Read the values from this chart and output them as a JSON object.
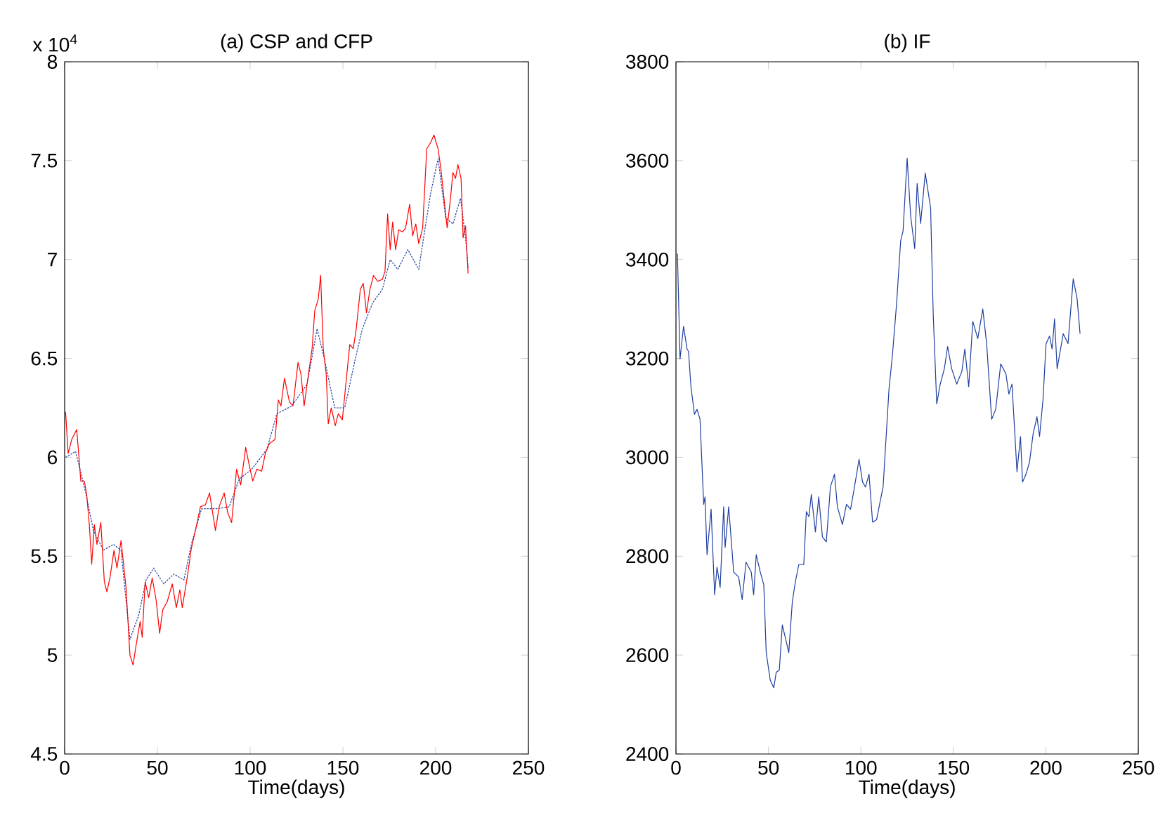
{
  "chart_data": [
    {
      "type": "line",
      "title": "(a) CSP and CFP",
      "xlabel": "Time(days)",
      "annotations": [
        "x 10$^{4}$"
      ],
      "xlim": [
        0,
        250
      ],
      "xticks": [
        0,
        50,
        100,
        150,
        200,
        250
      ],
      "ylim": [
        4.5,
        8
      ],
      "yticks": [
        4.5,
        5,
        5.5,
        6,
        6.5,
        7,
        7.5,
        8
      ],
      "grid": false,
      "series": [
        {
          "color": "#1f3fa0",
          "line_style": "dotted",
          "x": [
            0.5,
            5.9,
            11.4,
            15.5,
            20.9,
            26.3,
            30.4,
            35.2,
            39.9,
            43.9,
            48,
            53.4,
            58.8,
            64.3,
            68.3,
            73.8,
            81.9,
            88.7,
            94.1,
            100.9,
            109,
            114.4,
            122.5,
            130.7,
            136.1,
            140.2,
            145.6,
            151,
            156.5,
            160.5,
            166,
            171.3,
            175.5,
            179.6,
            185,
            190.9,
            193,
            197.2,
            201.3,
            205.4,
            209.3,
            213.4,
            216.1,
            217.5
          ],
          "values": [
            6.0,
            6.03,
            5.82,
            5.63,
            5.53,
            5.56,
            5.53,
            5.08,
            5.2,
            5.38,
            5.44,
            5.36,
            5.41,
            5.38,
            5.56,
            5.74,
            5.74,
            5.75,
            5.89,
            5.94,
            6.04,
            6.22,
            6.26,
            6.37,
            6.65,
            6.49,
            6.25,
            6.25,
            6.49,
            6.65,
            6.78,
            6.85,
            7.0,
            6.95,
            7.05,
            6.95,
            7.08,
            7.33,
            7.51,
            7.21,
            7.18,
            7.31,
            7.11,
            6.96
          ]
        },
        {
          "color": "#ff0000",
          "line_style": "solid",
          "x": [
            0.5,
            1.9,
            3.8,
            6.5,
            7.3,
            8.7,
            10.6,
            11.9,
            13.3,
            14.6,
            16,
            17.4,
            19.5,
            21.4,
            22.8,
            24.4,
            26.6,
            28.2,
            30.4,
            33.1,
            35.2,
            36.9,
            38.5,
            40.7,
            41.8,
            43.4,
            45.3,
            47.2,
            49.3,
            51.2,
            52.9,
            55.3,
            58,
            60.2,
            62.1,
            63.4,
            66.2,
            68.3,
            70.5,
            73.2,
            75.9,
            78.1,
            81.3,
            83.3,
            86,
            87.9,
            90,
            92.7,
            94.9,
            97.6,
            99.5,
            101.4,
            103.6,
            106.2,
            108.2,
            110.4,
            113.4,
            115.2,
            116.6,
            118.5,
            121.2,
            123.1,
            125.8,
            127.4,
            129.1,
            130.7,
            133.4,
            134.8,
            136.7,
            138,
            139.4,
            141,
            142.1,
            143.7,
            145.9,
            147.5,
            149.7,
            151.9,
            153.7,
            155.6,
            157.2,
            159.4,
            161,
            162.7,
            164.6,
            166.5,
            168.7,
            171.3,
            172.7,
            174.1,
            175.5,
            176.8,
            178.4,
            180.1,
            182.2,
            183.8,
            186,
            187.6,
            189.3,
            190.9,
            193,
            195.2,
            197.2,
            199.1,
            201.3,
            202.8,
            204.5,
            206.2,
            208,
            209.3,
            210.7,
            212,
            213.7,
            214.8,
            216.1,
            217.5
          ],
          "values": [
            6.23,
            6.02,
            6.09,
            6.14,
            6.05,
            5.88,
            5.88,
            5.81,
            5.66,
            5.46,
            5.66,
            5.56,
            5.67,
            5.37,
            5.32,
            5.39,
            5.53,
            5.44,
            5.58,
            5.34,
            5.0,
            4.95,
            5.05,
            5.17,
            5.09,
            5.37,
            5.29,
            5.39,
            5.28,
            5.11,
            5.23,
            5.27,
            5.36,
            5.24,
            5.33,
            5.24,
            5.4,
            5.54,
            5.63,
            5.75,
            5.76,
            5.82,
            5.63,
            5.75,
            5.82,
            5.72,
            5.67,
            5.94,
            5.86,
            6.05,
            5.96,
            5.88,
            5.94,
            5.93,
            6.02,
            6.07,
            6.09,
            6.29,
            6.26,
            6.4,
            6.28,
            6.26,
            6.48,
            6.42,
            6.26,
            6.37,
            6.55,
            6.74,
            6.8,
            6.92,
            6.55,
            6.42,
            6.17,
            6.25,
            6.16,
            6.22,
            6.19,
            6.4,
            6.57,
            6.55,
            6.65,
            6.85,
            6.88,
            6.73,
            6.85,
            6.92,
            6.89,
            6.9,
            6.94,
            7.23,
            7.05,
            7.19,
            7.05,
            7.15,
            7.14,
            7.16,
            7.28,
            7.12,
            7.18,
            7.08,
            7.16,
            7.56,
            7.59,
            7.63,
            7.56,
            7.46,
            7.31,
            7.16,
            7.31,
            7.44,
            7.41,
            7.48,
            7.41,
            7.11,
            7.17,
            6.93
          ]
        }
      ]
    },
    {
      "type": "line",
      "title": "(b) IF",
      "xlabel": "Time(days)",
      "xlim": [
        0,
        250
      ],
      "xticks": [
        0,
        50,
        100,
        150,
        200,
        250
      ],
      "ylim": [
        2400,
        3800
      ],
      "yticks": [
        2400,
        2600,
        2800,
        3000,
        3200,
        3400,
        3600,
        3800
      ],
      "grid": false,
      "series": [
        {
          "color": "#1f3fa0",
          "line_style": "solid",
          "x": [
            0.8,
            2.2,
            4.1,
            6,
            6.8,
            8.1,
            10,
            11.4,
            13,
            15,
            15.7,
            16.8,
            19,
            20.9,
            22.2,
            23.9,
            25.8,
            26.6,
            28.5,
            31.2,
            33.9,
            35.8,
            37.9,
            40.7,
            42,
            43.4,
            45.6,
            47.5,
            48.8,
            51,
            52.9,
            54.2,
            55.9,
            57.5,
            59.1,
            61,
            62.9,
            64.5,
            66.4,
            69.1,
            70.5,
            71.9,
            73.2,
            75.4,
            77.2,
            79.2,
            81.3,
            83.5,
            85.7,
            87.3,
            90,
            92.2,
            94.4,
            96.3,
            99,
            100.9,
            102.5,
            104.4,
            106.3,
            108.5,
            110.1,
            112,
            115.2,
            117.1,
            119.3,
            121.5,
            122.8,
            125,
            126.9,
            129.1,
            130.4,
            132.3,
            134.8,
            137.7,
            139.1,
            141,
            142.9,
            145.1,
            146.9,
            149.1,
            151.8,
            154.6,
            156.2,
            158.3,
            160.5,
            163.2,
            165.9,
            168,
            170.7,
            172.9,
            175.6,
            178.4,
            180,
            181.7,
            184.4,
            186.3,
            187.4,
            189.3,
            191.2,
            193.1,
            195.2,
            196.6,
            198.5,
            200.1,
            202,
            203.4,
            204.7,
            206.1,
            209.4,
            212,
            214.8,
            216.9,
            218.5
          ],
          "values": [
            3412,
            3199,
            3265,
            3219,
            3214,
            3143,
            3087,
            3097,
            3077,
            2905,
            2920,
            2803,
            2895,
            2722,
            2778,
            2737,
            2900,
            2818,
            2900,
            2768,
            2758,
            2712,
            2788,
            2768,
            2722,
            2803,
            2768,
            2742,
            2605,
            2549,
            2534,
            2565,
            2570,
            2661,
            2636,
            2605,
            2707,
            2747,
            2783,
            2783,
            2890,
            2880,
            2925,
            2849,
            2920,
            2839,
            2829,
            2940,
            2966,
            2900,
            2864,
            2905,
            2895,
            2935,
            2996,
            2950,
            2940,
            2966,
            2869,
            2874,
            2905,
            2940,
            3138,
            3209,
            3311,
            3438,
            3458,
            3605,
            3488,
            3422,
            3554,
            3473,
            3575,
            3504,
            3290,
            3108,
            3148,
            3179,
            3224,
            3179,
            3148,
            3174,
            3219,
            3143,
            3275,
            3240,
            3300,
            3230,
            3077,
            3097,
            3189,
            3169,
            3128,
            3148,
            2971,
            3042,
            2950,
            2966,
            2991,
            3047,
            3082,
            3042,
            3118,
            3230,
            3245,
            3219,
            3280,
            3179,
            3250,
            3230,
            3361,
            3321,
            3250
          ]
        }
      ]
    }
  ]
}
